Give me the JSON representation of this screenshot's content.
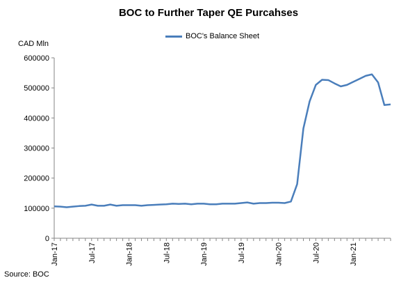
{
  "chart_data": {
    "type": "line",
    "title": "BOC to Further Taper QE Purcahses",
    "ylabel": "CAD Mln",
    "xlabel": "",
    "source": "Source: BOC",
    "ylim": [
      0,
      600000
    ],
    "yticks": [
      0,
      100000,
      200000,
      300000,
      400000,
      500000,
      600000
    ],
    "ytick_labels": [
      "0",
      "100000",
      "200000",
      "300000",
      "400000",
      "500000",
      "600000"
    ],
    "xtick_labels": [
      "Jan-17",
      "Jul-17",
      "Jan-18",
      "Jul-18",
      "Jan-19",
      "Jul-19",
      "Jan-20",
      "Jul-20",
      "Jan-21"
    ],
    "xtick_positions": [
      0,
      6,
      12,
      18,
      24,
      30,
      36,
      42,
      48
    ],
    "grid": false,
    "legend_position": "top-center",
    "series": [
      {
        "name": "BOC's Balance Sheet",
        "color": "#4a7ebb",
        "values": [
          106000,
          105000,
          103000,
          105000,
          107000,
          108000,
          112000,
          108000,
          108000,
          112000,
          108000,
          110000,
          110000,
          110000,
          108000,
          110000,
          111000,
          112000,
          113000,
          115000,
          114000,
          115000,
          113000,
          115000,
          115000,
          113000,
          113000,
          115000,
          115000,
          115000,
          117000,
          119000,
          115000,
          117000,
          117000,
          118000,
          118000,
          117000,
          122000,
          180000,
          365000,
          455000,
          510000,
          527000,
          526000,
          515000,
          505000,
          510000,
          520000,
          530000,
          540000,
          545000,
          518000,
          443000,
          445000
        ]
      }
    ]
  }
}
